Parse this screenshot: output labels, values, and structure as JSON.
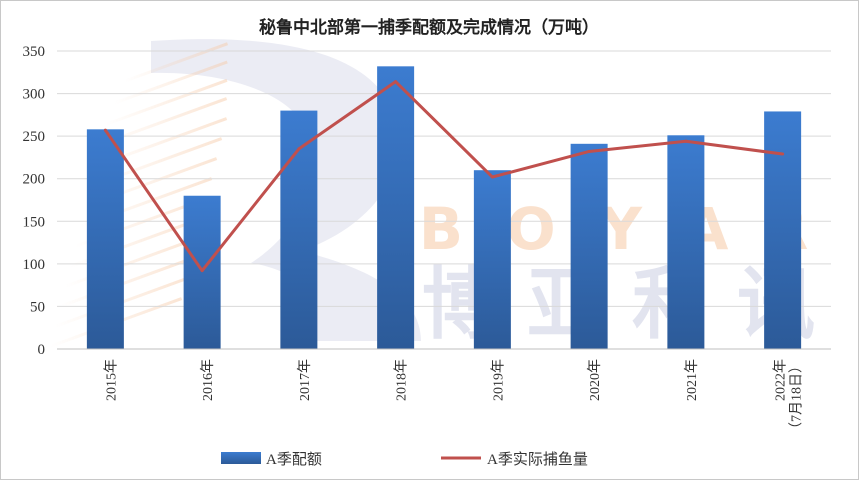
{
  "chart_data": {
    "type": "bar+line",
    "title": "秘鲁中北部第一捕季配额及完成情况（万吨）",
    "categories": [
      "2015年",
      "2016年",
      "2017年",
      "2018年",
      "2019年",
      "2020年",
      "2021年",
      "2022年|（7月18日）"
    ],
    "ylim": [
      0,
      350
    ],
    "yticks": [
      0,
      50,
      100,
      150,
      200,
      250,
      300,
      350
    ],
    "grid": true,
    "legend_position": "bottom",
    "series": [
      {
        "name": "A季配额",
        "type": "bar",
        "color": "#3a75c4",
        "values": [
          258,
          180,
          280,
          332,
          210,
          241,
          251,
          279
        ]
      },
      {
        "name": "A季实际捕鱼量",
        "type": "line",
        "color": "#c0504d",
        "values": [
          257,
          92,
          235,
          314,
          202,
          232,
          244,
          229
        ]
      }
    ]
  },
  "watermark": {
    "letters": [
      "B",
      "O",
      "Y",
      "A",
      "R"
    ],
    "chinese": [
      "博",
      "亚",
      "和",
      "讯"
    ]
  }
}
